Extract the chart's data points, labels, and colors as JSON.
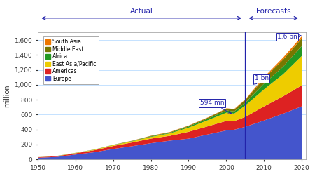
{
  "years_actual": [
    1950,
    1955,
    1960,
    1965,
    1970,
    1975,
    1980,
    1985,
    1990,
    1995,
    2000,
    2002,
    2005
  ],
  "years_forecast": [
    2005,
    2010,
    2015,
    2020
  ],
  "regions": [
    "Europe",
    "Americas",
    "East Asia/Pacific",
    "Africa",
    "Middle East",
    "South Asia"
  ],
  "colors": [
    "#4455cc",
    "#dd2222",
    "#eecc00",
    "#229922",
    "#777700",
    "#ee7700"
  ],
  "actual_data": {
    "Europe": [
      25,
      37,
      69,
      100,
      144,
      181,
      221,
      255,
      282,
      338,
      393,
      401,
      441
    ],
    "Americas": [
      7,
      10,
      17,
      27,
      40,
      50,
      62,
      65,
      93,
      109,
      128,
      116,
      133
    ],
    "East Asia/Pacific": [
      1,
      2,
      4,
      7,
      12,
      15,
      23,
      33,
      56,
      82,
      110,
      100,
      155
    ],
    "Africa": [
      0.5,
      1,
      1,
      2,
      2,
      4,
      7,
      8,
      15,
      20,
      28,
      29,
      37
    ],
    "Middle East": [
      0.2,
      0.5,
      1,
      1,
      2,
      4,
      7,
      8,
      10,
      14,
      24,
      27,
      38
    ],
    "South Asia": [
      0.2,
      0.3,
      0.4,
      0.5,
      1,
      1.5,
      2,
      3,
      3,
      4,
      6,
      6,
      8
    ]
  },
  "forecast_data": {
    "Europe": [
      441,
      527,
      617,
      717
    ],
    "Americas": [
      133,
      190,
      234,
      282
    ],
    "East Asia/Pacific": [
      155,
      229,
      296,
      397
    ],
    "Africa": [
      37,
      77,
      100,
      134
    ],
    "Middle East": [
      38,
      69,
      97,
      100
    ],
    "South Asia": [
      8,
      19,
      27,
      29
    ]
  },
  "forecast_vline_x": 2005,
  "xlim": [
    1950,
    2021
  ],
  "ylim": [
    0,
    1700
  ],
  "yticks": [
    0,
    200,
    400,
    600,
    800,
    1000,
    1200,
    1400,
    1600
  ],
  "xticks": [
    1950,
    1960,
    1970,
    1980,
    1990,
    2000,
    2010,
    2020
  ],
  "ylabel": "million",
  "blue_color": "#2222aa",
  "bg_color": "#ffffff",
  "grid_color": "#bbddff",
  "legend_labels": [
    "South Asia",
    "Middle East",
    "Africa",
    "East Asia/Pacific",
    "Americas",
    "Europe"
  ],
  "legend_colors": [
    "#ee7700",
    "#777700",
    "#229922",
    "#eecc00",
    "#dd2222",
    "#4455cc"
  ]
}
